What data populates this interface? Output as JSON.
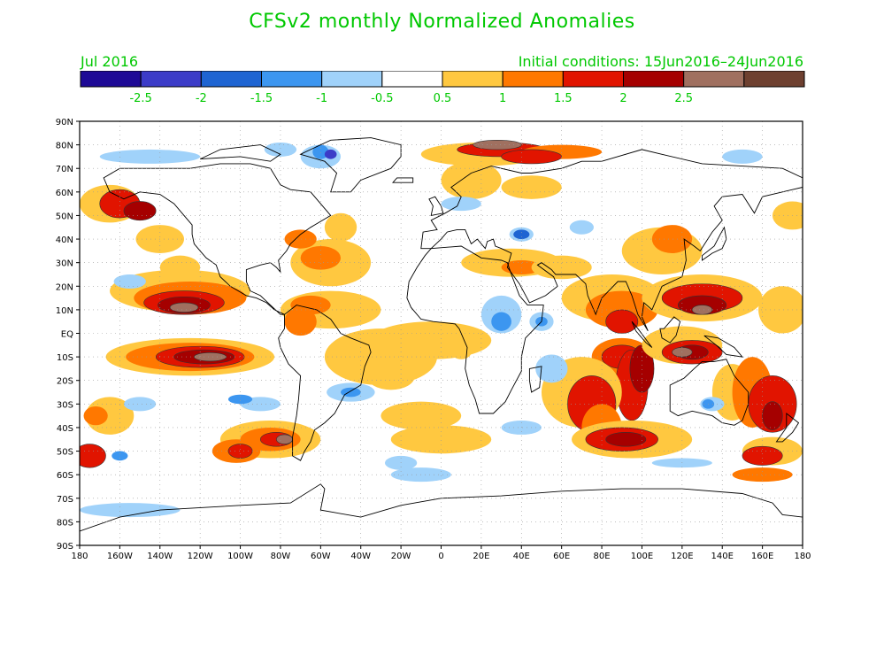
{
  "title": "CFSv2 monthly Normalized Anomalies",
  "month_label": "Jul 2016",
  "initial_conditions": "Initial conditions: 15Jun2016–24Jun2016",
  "colorbar": {
    "colors": [
      "#1e0a96",
      "#3c3cc8",
      "#1e64d2",
      "#3c96f0",
      "#a0d2fa",
      "#ffffff",
      "#ffc840",
      "#ff7800",
      "#e11400",
      "#a50000",
      "#a07060",
      "#6e4030"
    ],
    "labels": [
      "-2.5",
      "-2",
      "-1.5",
      "-1",
      "-0.5",
      "0.5",
      "1",
      "1.5",
      "2",
      "2.5"
    ]
  },
  "map": {
    "lat_labels": [
      "90N",
      "80N",
      "70N",
      "60N",
      "50N",
      "40N",
      "30N",
      "20N",
      "10N",
      "EQ",
      "10S",
      "20S",
      "30S",
      "40S",
      "50S",
      "60S",
      "70S",
      "80S",
      "90S"
    ],
    "lon_labels": [
      "180",
      "160W",
      "140W",
      "120W",
      "100W",
      "80W",
      "60W",
      "40W",
      "20W",
      "0",
      "20E",
      "40E",
      "60E",
      "80E",
      "100E",
      "120E",
      "140E",
      "160E",
      "180"
    ]
  }
}
